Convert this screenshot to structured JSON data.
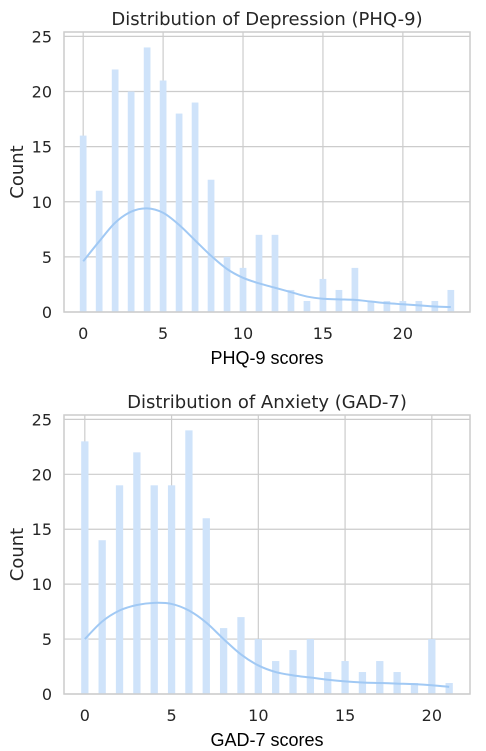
{
  "colors": {
    "bar": "#cfe3fa",
    "kde": "#a1c9f4",
    "grid": "#cccccc",
    "frame": "#cccccc"
  },
  "chart_data": [
    {
      "type": "bar",
      "title": "Distribution of Depression (PHQ-9)",
      "xlabel": "PHQ-9 scores",
      "ylabel": "Count",
      "xlim": [
        -1.2,
        24.2
      ],
      "ylim": [
        0,
        25.4
      ],
      "xticks": [
        0,
        5,
        10,
        15,
        20
      ],
      "yticks": [
        0,
        5,
        10,
        15,
        20,
        25
      ],
      "grid": true,
      "x": [
        0,
        1,
        2,
        3,
        4,
        5,
        6,
        7,
        8,
        9,
        10,
        11,
        12,
        13,
        14,
        15,
        16,
        17,
        18,
        19,
        20,
        21,
        22,
        23
      ],
      "values": [
        16,
        11,
        22,
        20,
        24,
        21,
        18,
        19,
        12,
        5,
        4,
        7,
        7,
        2,
        1,
        3,
        2,
        4,
        1,
        1,
        1,
        1,
        1,
        2
      ],
      "kde": {
        "x": [
          0,
          1,
          2,
          3,
          4,
          5,
          6,
          7,
          8,
          9,
          10,
          11,
          12,
          13,
          14,
          15,
          16,
          17,
          18,
          19,
          20,
          21,
          22,
          23
        ],
        "y": [
          4.6,
          6.4,
          8.1,
          9.1,
          9.4,
          9.0,
          7.9,
          6.5,
          5.1,
          3.9,
          3.1,
          2.6,
          2.2,
          1.8,
          1.4,
          1.2,
          1.15,
          1.1,
          0.95,
          0.8,
          0.7,
          0.6,
          0.5,
          0.45
        ]
      }
    },
    {
      "type": "bar",
      "title": "Distribution of Anxiety (GAD-7)",
      "xlabel": "GAD-7 scores",
      "ylabel": "Count",
      "xlim": [
        -1.2,
        22.2
      ],
      "ylim": [
        0,
        25.4
      ],
      "xticks": [
        0,
        5,
        10,
        15,
        20
      ],
      "yticks": [
        0,
        5,
        10,
        15,
        20,
        25
      ],
      "grid": true,
      "x": [
        0,
        1,
        2,
        3,
        4,
        5,
        6,
        7,
        8,
        9,
        10,
        11,
        12,
        13,
        14,
        15,
        16,
        17,
        18,
        19,
        20,
        21
      ],
      "values": [
        23,
        14,
        19,
        22,
        19,
        19,
        24,
        16,
        6,
        7,
        5,
        3,
        4,
        5,
        2,
        3,
        2,
        3,
        2,
        1,
        5,
        1
      ],
      "kde": {
        "x": [
          0,
          1,
          2,
          3,
          4,
          5,
          6,
          7,
          8,
          9,
          10,
          11,
          12,
          13,
          14,
          15,
          16,
          17,
          18,
          19,
          20,
          21
        ],
        "y": [
          5.0,
          6.6,
          7.6,
          8.1,
          8.3,
          8.2,
          7.6,
          6.5,
          5.0,
          3.6,
          2.6,
          2.0,
          1.7,
          1.5,
          1.3,
          1.15,
          1.05,
          1.0,
          0.95,
          0.9,
          0.8,
          0.65
        ]
      }
    }
  ]
}
